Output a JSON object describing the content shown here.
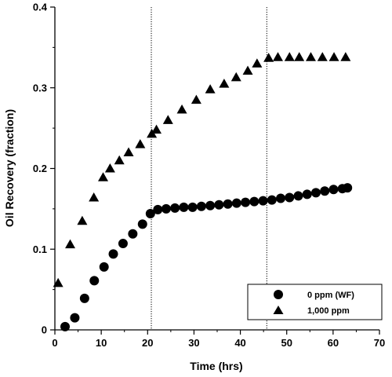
{
  "chart_data": {
    "type": "scatter",
    "xlabel": "Time (hrs)",
    "ylabel": "Oil Recovery (fraction)",
    "xlim": [
      0,
      70
    ],
    "ylim": [
      0,
      0.4
    ],
    "x_ticks": [
      0,
      10,
      20,
      30,
      40,
      50,
      60,
      70
    ],
    "x_tick_labels": [
      "0",
      "10",
      "20",
      "30",
      "40",
      "50",
      "60",
      "70"
    ],
    "y_ticks": [
      0,
      0.1,
      0.2,
      0.3,
      0.4
    ],
    "y_tick_labels": [
      "0",
      "0.1",
      "0.2",
      "0.3",
      "0.4"
    ],
    "vlines": [
      20.8,
      45.7
    ],
    "grid": false,
    "legend_position": "bottom-right",
    "series": [
      {
        "name": "0 ppm (WF)",
        "marker": "circle",
        "color": "#000000",
        "x": [
          2.2,
          4.3,
          6.4,
          8.5,
          10.6,
          12.6,
          14.7,
          16.8,
          18.9,
          20.6,
          22.2,
          24.0,
          25.9,
          27.8,
          29.7,
          31.6,
          33.5,
          35.4,
          37.3,
          39.2,
          41.1,
          43.0,
          44.9,
          46.8,
          48.7,
          50.6,
          52.5,
          54.4,
          56.3,
          58.2,
          60.1,
          62.0,
          63.1
        ],
        "y": [
          0.004,
          0.015,
          0.039,
          0.061,
          0.078,
          0.094,
          0.107,
          0.119,
          0.131,
          0.144,
          0.149,
          0.15,
          0.151,
          0.152,
          0.152,
          0.153,
          0.154,
          0.155,
          0.156,
          0.157,
          0.158,
          0.159,
          0.16,
          0.161,
          0.163,
          0.164,
          0.166,
          0.168,
          0.17,
          0.172,
          0.174,
          0.175,
          0.176
        ]
      },
      {
        "name": "1,000 ppm",
        "marker": "triangle",
        "color": "#000000",
        "x": [
          0.7,
          3.3,
          5.9,
          8.4,
          10.4,
          11.9,
          13.9,
          15.9,
          18.4,
          20.9,
          21.9,
          24.4,
          27.4,
          30.5,
          33.5,
          36.5,
          39.1,
          41.6,
          43.6,
          46.1,
          48.1,
          50.6,
          52.7,
          55.2,
          57.7,
          60.2,
          62.7
        ],
        "y": [
          0.058,
          0.106,
          0.135,
          0.164,
          0.189,
          0.2,
          0.21,
          0.22,
          0.23,
          0.243,
          0.248,
          0.26,
          0.273,
          0.285,
          0.298,
          0.305,
          0.313,
          0.321,
          0.33,
          0.337,
          0.338,
          0.338,
          0.338,
          0.338,
          0.338,
          0.338,
          0.338
        ]
      }
    ]
  }
}
